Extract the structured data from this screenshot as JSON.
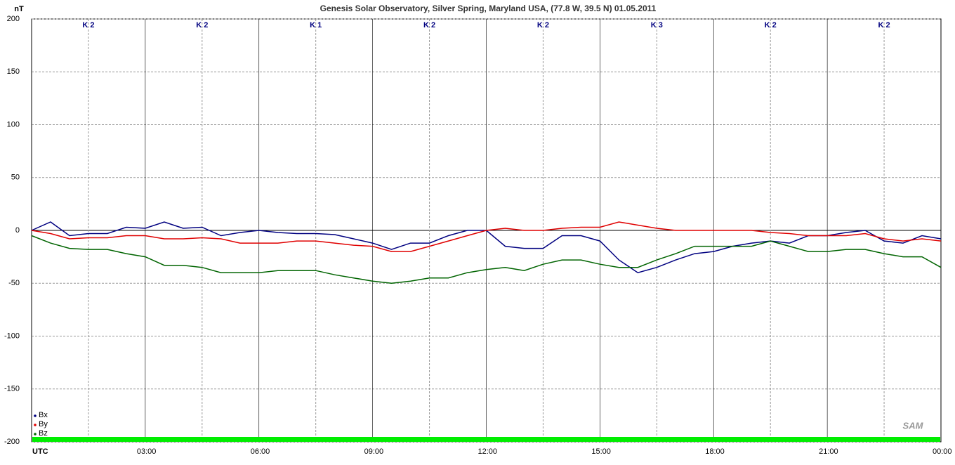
{
  "chart_data": {
    "type": "line",
    "title": "Genesis Solar Observatory, Silver Spring, Maryland USA, (77.8 W, 39.5 N)  01.05.2011",
    "y_unit": "nT",
    "logo": "SAM",
    "k_labels": [
      "K 2",
      "K 2",
      "K 1",
      "K 2",
      "K 2",
      "K 3",
      "K 2",
      "K 2"
    ],
    "x": [
      0,
      0.5,
      1,
      1.5,
      2,
      2.5,
      3,
      3.5,
      4,
      4.5,
      5,
      5.5,
      6,
      6.5,
      7,
      7.5,
      8,
      8.5,
      9,
      9.5,
      10,
      10.5,
      11,
      11.5,
      12,
      12.5,
      13,
      13.5,
      14,
      14.5,
      15,
      15.5,
      16,
      16.5,
      17,
      17.5,
      18,
      18.5,
      19,
      19.5,
      20,
      20.5,
      21,
      21.5,
      22,
      22.5,
      23,
      23.5,
      24
    ],
    "xlim": [
      0,
      24
    ],
    "xticks": [
      {
        "value": 0,
        "label": "UTC"
      },
      {
        "value": 3,
        "label": "03:00"
      },
      {
        "value": 6,
        "label": "06:00"
      },
      {
        "value": 9,
        "label": "09:00"
      },
      {
        "value": 12,
        "label": "12:00"
      },
      {
        "value": 15,
        "label": "15:00"
      },
      {
        "value": 18,
        "label": "18:00"
      },
      {
        "value": 21,
        "label": "21:00"
      },
      {
        "value": 24,
        "label": "00:00"
      }
    ],
    "ylim": [
      -200,
      200
    ],
    "yticks": [
      200,
      150,
      100,
      50,
      0,
      -50,
      -100,
      -150,
      -200
    ],
    "grid": true,
    "legend": "bottom-left",
    "series": [
      {
        "name": "Bx",
        "color": "#000080",
        "values": [
          0,
          8,
          -5,
          -3,
          -3,
          3,
          2,
          8,
          2,
          3,
          -5,
          -2,
          0,
          -2,
          -3,
          -3,
          -4,
          -8,
          -12,
          -18,
          -12,
          -12,
          -5,
          0,
          0,
          -15,
          -17,
          -17,
          -5,
          -5,
          -10,
          -28,
          -40,
          -35,
          -28,
          -22,
          -20,
          -15,
          -12,
          -10,
          -12,
          -5,
          -5,
          -2,
          0,
          -10,
          -12,
          -5,
          -8
        ]
      },
      {
        "name": "By",
        "color": "#e00000",
        "values": [
          0,
          -3,
          -8,
          -7,
          -7,
          -5,
          -5,
          -8,
          -8,
          -7,
          -8,
          -12,
          -12,
          -12,
          -10,
          -10,
          -12,
          -14,
          -15,
          -20,
          -20,
          -15,
          -10,
          -5,
          0,
          2,
          0,
          0,
          2,
          3,
          3,
          8,
          5,
          2,
          0,
          0,
          0,
          0,
          0,
          -2,
          -3,
          -5,
          -5,
          -5,
          -3,
          -8,
          -10,
          -8,
          -10
        ]
      },
      {
        "name": "Bz",
        "color": "#006400",
        "values": [
          -5,
          -12,
          -17,
          -18,
          -18,
          -22,
          -25,
          -33,
          -33,
          -35,
          -40,
          -40,
          -40,
          -38,
          -38,
          -38,
          -42,
          -45,
          -48,
          -50,
          -48,
          -45,
          -45,
          -40,
          -37,
          -35,
          -38,
          -32,
          -28,
          -28,
          -32,
          -35,
          -35,
          -28,
          -22,
          -15,
          -15,
          -15,
          -15,
          -10,
          -15,
          -20,
          -20,
          -18,
          -18,
          -22,
          -25,
          -25,
          -35
        ]
      }
    ]
  }
}
